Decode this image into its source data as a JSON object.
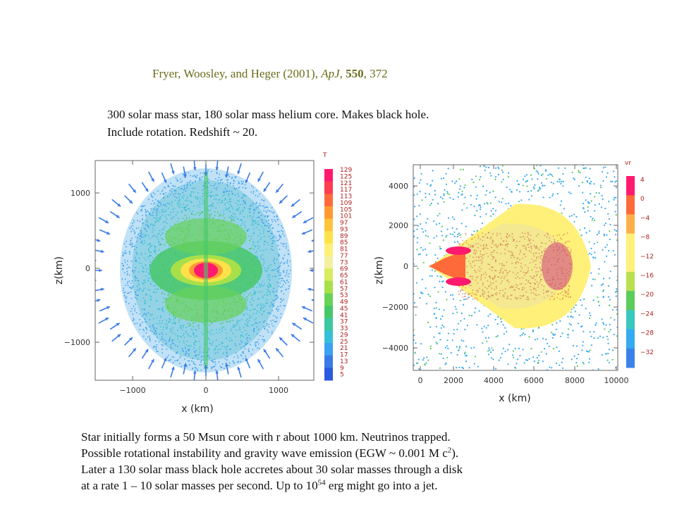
{
  "citation": {
    "authors": "Fryer, Woosley, and Heger (2001), ",
    "journal": "ApJ",
    "sep": ", ",
    "volume": "550",
    "pages": ", 372"
  },
  "intro": {
    "line1": "300 solar mass star, 180 solar mass helium core. Makes black hole.",
    "line2": "Include rotation. Redshift ~ 20."
  },
  "left_plot": {
    "xlabel": "x (km)",
    "ylabel": "z(km)",
    "xticks": [
      "−1000",
      "0",
      "1000"
    ],
    "yticks": [
      "1000",
      "0",
      "−1000"
    ],
    "colorbar_title": "T",
    "colorbar_labels": [
      "129",
      "125",
      "121",
      "117",
      "113",
      "109",
      "105",
      "101",
      "97",
      "93",
      "89",
      "85",
      "81",
      "77",
      "73",
      "69",
      "65",
      "61",
      "57",
      "53",
      "49",
      "45",
      "41",
      "37",
      "33",
      "29",
      "25",
      "21",
      "17",
      "13",
      "9",
      "5"
    ]
  },
  "right_plot": {
    "xlabel": "x (km)",
    "ylabel": "z(km)",
    "xticks": [
      "0",
      "2000",
      "4000",
      "6000",
      "8000",
      "10000"
    ],
    "yticks": [
      "4000",
      "2000",
      "0",
      "−2000",
      "−4000"
    ],
    "colorbar_title": "vr",
    "colorbar_labels": [
      "4",
      "0",
      "−4",
      "−8",
      "−12",
      "−16",
      "−20",
      "−24",
      "−28",
      "−32"
    ]
  },
  "summary": {
    "line1": "Star initially forms a 50 Msun core with r about 1000 km. Neutrinos trapped.",
    "line2a": "Possible rotational instability and gravity wave emission (EGW ~ 0.001 M c",
    "line2sup": "2",
    "line2b": ").",
    "line3": "Later a 130 solar mass black hole accretes about 30 solar masses through a disk",
    "line4a": "at a rate 1 – 10 solar masses per second. Up to 10",
    "line4sup": "54",
    "line4b": " erg might go into a jet."
  },
  "colors": {
    "citation": "#6b6b1a",
    "temp_scale": [
      "#ff1a6e",
      "#ff3c50",
      "#ff6a3a",
      "#ff9a32",
      "#ffc43a",
      "#ffe24a",
      "#fff07a",
      "#f4f0a0",
      "#d8ec60",
      "#a8e04a",
      "#6ad25a",
      "#46c86a",
      "#3cc8a0",
      "#36c0d8",
      "#3aa2f0",
      "#3a7ae8",
      "#2a5ae0"
    ],
    "vr_scale": [
      "#ff1a6e",
      "#ff6a3a",
      "#ffb04a",
      "#fff07a",
      "#fff07a",
      "#b8e050",
      "#5ccc5c",
      "#38c8c0",
      "#36aaf0",
      "#3a82ea"
    ]
  }
}
